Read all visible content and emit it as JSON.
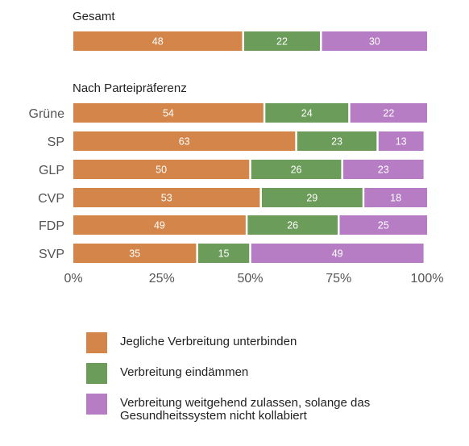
{
  "chart_data": {
    "type": "bar",
    "orientation": "horizontal",
    "stacked": true,
    "panels": [
      {
        "title": "Gesamt",
        "categories": [
          ""
        ],
        "series": [
          {
            "name": "Jegliche Verbreitung unterbinden",
            "values": [
              48
            ]
          },
          {
            "name": "Verbreitung eindämmen",
            "values": [
              22
            ]
          },
          {
            "name": "Verbreitung weitgehend zulassen, solange das Gesundheitssystem nicht kollabiert",
            "values": [
              30
            ]
          }
        ]
      },
      {
        "title": "Nach Parteipräferenz",
        "categories": [
          "Grüne",
          "SP",
          "GLP",
          "CVP",
          "FDP",
          "SVP"
        ],
        "series": [
          {
            "name": "Jegliche Verbreitung unterbinden",
            "values": [
              54,
              63,
              50,
              53,
              49,
              35
            ]
          },
          {
            "name": "Verbreitung eindämmen",
            "values": [
              24,
              23,
              26,
              29,
              26,
              15
            ]
          },
          {
            "name": "Verbreitung weitgehend zulassen, solange das Gesundheitssystem nicht kollabiert",
            "values": [
              22,
              13,
              23,
              18,
              25,
              49
            ]
          }
        ]
      }
    ],
    "xlim": [
      0,
      100
    ],
    "x_ticks": [
      "0%",
      "25%",
      "50%",
      "75%",
      "100%"
    ],
    "colors": [
      "#d4864a",
      "#6b9c5a",
      "#b77dc4"
    ],
    "legend_position": "bottom",
    "grid": false
  },
  "legend": {
    "items": [
      {
        "label": "Jegliche Verbreitung unterbinden",
        "color": "#d4864a"
      },
      {
        "label": "Verbreitung eindämmen",
        "color": "#6b9c5a"
      },
      {
        "label": "Verbreitung weitgehend zulassen, solange das Gesundheitssystem nicht kollabiert",
        "color": "#b77dc4"
      }
    ]
  }
}
